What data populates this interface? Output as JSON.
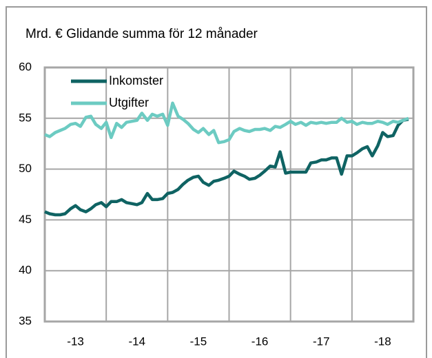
{
  "chart_data": {
    "type": "line",
    "title": "Mrd. €  Glidande summa för 12 månader",
    "x": [
      2013,
      2013.08,
      2013.17,
      2013.25,
      2013.33,
      2013.42,
      2013.5,
      2013.58,
      2013.67,
      2013.75,
      2013.83,
      2013.92,
      2014,
      2014.08,
      2014.17,
      2014.25,
      2014.33,
      2014.42,
      2014.5,
      2014.58,
      2014.67,
      2014.75,
      2014.83,
      2014.92,
      2015,
      2015.08,
      2015.17,
      2015.25,
      2015.33,
      2015.42,
      2015.5,
      2015.58,
      2015.67,
      2015.75,
      2015.83,
      2015.92,
      2016,
      2016.08,
      2016.17,
      2016.25,
      2016.33,
      2016.42,
      2016.5,
      2016.58,
      2016.67,
      2016.75,
      2016.83,
      2016.92,
      2017,
      2017.08,
      2017.17,
      2017.25,
      2017.33,
      2017.42,
      2017.5,
      2017.58,
      2017.67,
      2017.75,
      2017.83,
      2017.92,
      2018,
      2018.08,
      2018.17,
      2018.25,
      2018.33,
      2018.42,
      2018.5,
      2018.58,
      2018.67,
      2018.75,
      2018.83,
      2018.92
    ],
    "series": [
      {
        "name": "Inkomster",
        "color": "#0f6363",
        "values": [
          45.8,
          45.6,
          45.5,
          45.5,
          45.6,
          46.1,
          46.4,
          46.0,
          45.8,
          46.1,
          46.5,
          46.7,
          46.3,
          46.8,
          46.8,
          47.0,
          46.7,
          46.6,
          46.5,
          46.7,
          47.6,
          47.0,
          47.0,
          47.1,
          47.6,
          47.7,
          48.0,
          48.5,
          48.9,
          49.2,
          49.3,
          48.7,
          48.4,
          48.8,
          48.9,
          49.1,
          49.3,
          49.8,
          49.5,
          49.3,
          49.0,
          49.1,
          49.4,
          49.8,
          50.3,
          50.2,
          51.7,
          49.6,
          49.7,
          49.7,
          49.7,
          49.7,
          50.6,
          50.7,
          50.9,
          50.9,
          51.1,
          51.1,
          49.5,
          51.3,
          51.3,
          51.6,
          52.0,
          52.2,
          51.3,
          52.3,
          53.6,
          53.2,
          53.3,
          54.3,
          54.8,
          54.9
        ]
      },
      {
        "name": "Utgifter",
        "color": "#6ccbc2",
        "values": [
          53.4,
          53.2,
          53.6,
          53.8,
          54.0,
          54.4,
          54.5,
          54.2,
          55.1,
          55.2,
          54.4,
          54.0,
          54.6,
          53.1,
          54.5,
          54.1,
          54.6,
          54.7,
          54.8,
          55.5,
          54.8,
          55.4,
          55.2,
          55.4,
          54.3,
          56.5,
          55.2,
          54.9,
          54.5,
          53.9,
          53.6,
          54.0,
          53.4,
          53.8,
          52.6,
          52.7,
          52.9,
          53.7,
          54.0,
          53.8,
          53.7,
          53.9,
          53.9,
          54.0,
          53.8,
          54.2,
          54.1,
          54.4,
          54.7,
          54.4,
          54.6,
          54.3,
          54.6,
          54.5,
          54.6,
          54.5,
          54.6,
          54.6,
          55.0,
          54.6,
          54.7,
          54.4,
          54.6,
          54.5,
          54.5,
          54.7,
          54.6,
          54.4,
          54.7,
          54.6,
          54.8,
          55.0
        ]
      }
    ],
    "xlim": [
      2013,
      2019
    ],
    "xticks": [
      {
        "value": 2013.5,
        "label": "-13"
      },
      {
        "value": 2014.5,
        "label": "-14"
      },
      {
        "value": 2015.5,
        "label": "-15"
      },
      {
        "value": 2016.5,
        "label": "-16"
      },
      {
        "value": 2017.5,
        "label": "-17"
      },
      {
        "value": 2018.5,
        "label": "-18"
      }
    ],
    "xgrid": [
      2014,
      2015,
      2016,
      2017,
      2018
    ],
    "ylim": [
      35,
      60
    ],
    "yticks": [
      35,
      40,
      45,
      50,
      55,
      60
    ],
    "grid": true,
    "legend": "top-left"
  }
}
